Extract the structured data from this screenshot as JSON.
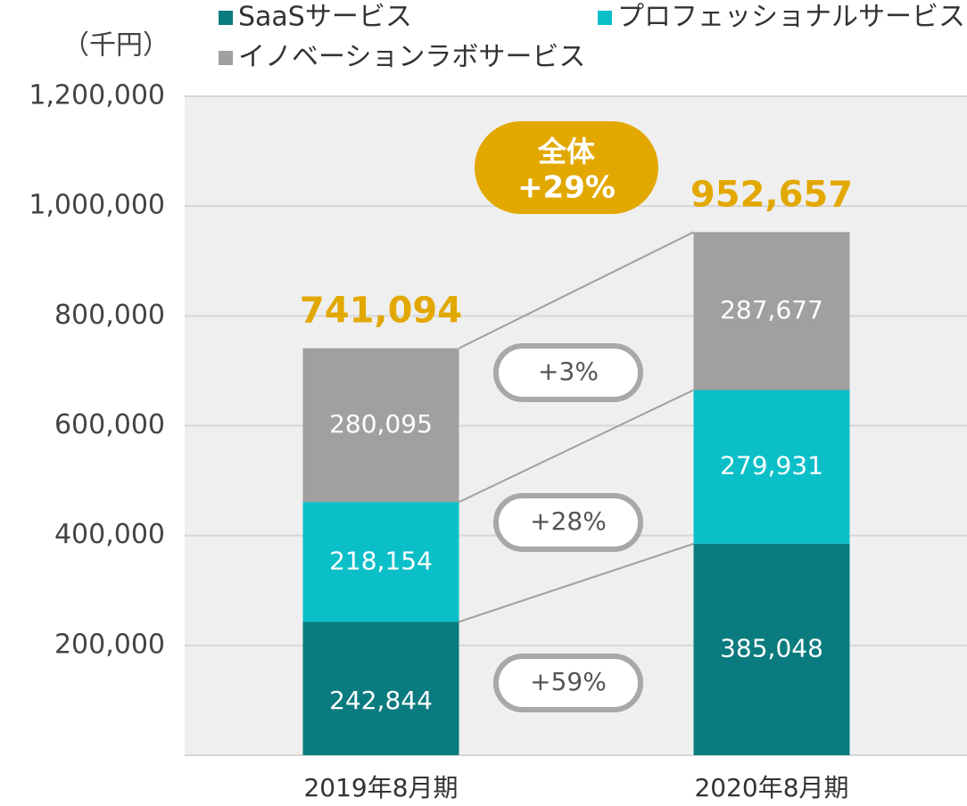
{
  "chart_data": {
    "type": "stacked_bar",
    "unit_label": "（千円）",
    "categories": [
      "2019年8月期",
      "2020年8月期"
    ],
    "series": [
      {
        "name": "SaaSサービス",
        "color": "#0a7b7e",
        "values": [
          242844,
          385048
        ],
        "value_labels": [
          "242,844",
          "385,048"
        ]
      },
      {
        "name": "プロフェッショナルサービス",
        "color": "#0bbfc8",
        "values": [
          218154,
          279931
        ],
        "value_labels": [
          "218,154",
          "279,931"
        ]
      },
      {
        "name": "イノベーションラボサービス",
        "color": "#a0a0a0",
        "values": [
          280095,
          287677
        ],
        "value_labels": [
          "280,095",
          "287,677"
        ]
      }
    ],
    "totals": [
      741094,
      952657
    ],
    "totals_labels": [
      "741,094",
      "952,657"
    ],
    "totals_color": "#e2a800",
    "growth_labels": [
      "+59%",
      "+28%",
      "+3%"
    ],
    "total_growth": [
      "全体",
      "+29%"
    ],
    "ylim": [
      0,
      1200000
    ],
    "yticks": [
      {
        "value": 200000,
        "label": "200,000"
      },
      {
        "value": 400000,
        "label": "400,000"
      },
      {
        "value": 600000,
        "label": "600,000"
      },
      {
        "value": 800000,
        "label": "800,000"
      },
      {
        "value": 1000000,
        "label": "1,000,000"
      },
      {
        "value": 1200000,
        "label": "1,200,000"
      }
    ],
    "grid": true
  }
}
